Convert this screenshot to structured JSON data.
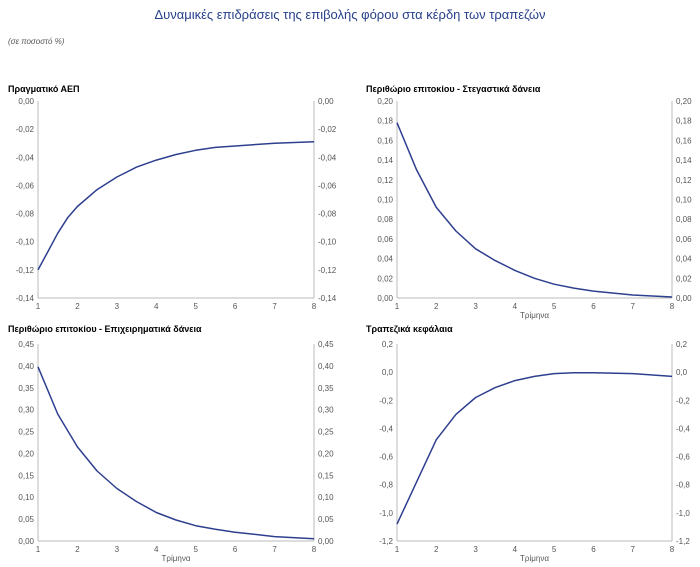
{
  "page": {
    "title": "Δυναμικές επιδράσεις της επιβολής φόρου στα κέρδη των τραπεζών",
    "unit_note": "(σε ποσοστό %)"
  },
  "chart_data": [
    {
      "type": "line",
      "title": "Πραγματικό ΑΕΠ",
      "xlabel": "",
      "x": [
        1,
        1.25,
        1.5,
        1.75,
        2,
        2.5,
        3,
        3.5,
        4,
        4.5,
        5,
        5.5,
        6,
        7,
        8
      ],
      "values": [
        -0.12,
        -0.107,
        -0.094,
        -0.083,
        -0.075,
        -0.063,
        -0.054,
        -0.047,
        -0.042,
        -0.038,
        -0.035,
        -0.033,
        -0.032,
        -0.03,
        -0.029
      ],
      "xticks": [
        "1",
        "2",
        "3",
        "4",
        "5",
        "6",
        "7",
        "8"
      ],
      "xlim": [
        1,
        8
      ],
      "ylim": [
        -0.14,
        0.0
      ],
      "yticks": [
        "0,00",
        "-0,02",
        "-0,04",
        "-0,06",
        "-0,08",
        "-0,10",
        "-0,12",
        "-0,14"
      ],
      "ytick_values": [
        0.0,
        -0.02,
        -0.04,
        -0.06,
        -0.08,
        -0.1,
        -0.12,
        -0.14
      ]
    },
    {
      "type": "line",
      "title": "Περιθώριο επιτοκίου - Στεγαστικά δάνεια",
      "xlabel": "Τρίμηνα",
      "x": [
        1,
        1.5,
        2,
        2.5,
        3,
        3.5,
        4,
        4.5,
        5,
        5.5,
        6,
        7,
        8
      ],
      "values": [
        0.178,
        0.13,
        0.092,
        0.068,
        0.05,
        0.038,
        0.028,
        0.02,
        0.014,
        0.01,
        0.007,
        0.003,
        0.001
      ],
      "xticks": [
        "1",
        "2",
        "3",
        "4",
        "5",
        "6",
        "7",
        "8"
      ],
      "xlim": [
        1,
        8
      ],
      "ylim": [
        0.0,
        0.2
      ],
      "yticks": [
        "0,20",
        "0,18",
        "0,16",
        "0,14",
        "0,12",
        "0,10",
        "0,08",
        "0,06",
        "0,04",
        "0,02",
        "0,00"
      ],
      "ytick_values": [
        0.2,
        0.18,
        0.16,
        0.14,
        0.12,
        0.1,
        0.08,
        0.06,
        0.04,
        0.02,
        0.0
      ]
    },
    {
      "type": "line",
      "title": "Περιθώριο επιτοκίου - Επιχειρηματικά δάνεια",
      "xlabel": "Τρίμηνα",
      "x": [
        1,
        1.5,
        2,
        2.5,
        3,
        3.5,
        4,
        4.5,
        5,
        5.5,
        6,
        7,
        8
      ],
      "values": [
        0.398,
        0.29,
        0.215,
        0.16,
        0.12,
        0.09,
        0.065,
        0.048,
        0.035,
        0.027,
        0.02,
        0.01,
        0.005
      ],
      "xticks": [
        "1",
        "2",
        "3",
        "4",
        "5",
        "6",
        "7",
        "8"
      ],
      "xlim": [
        1,
        8
      ],
      "ylim": [
        0.0,
        0.45
      ],
      "yticks": [
        "0,45",
        "0,40",
        "0,35",
        "0,30",
        "0,25",
        "0,20",
        "0,15",
        "0,10",
        "0,05",
        "0,00"
      ],
      "ytick_values": [
        0.45,
        0.4,
        0.35,
        0.3,
        0.25,
        0.2,
        0.15,
        0.1,
        0.05,
        0.0
      ]
    },
    {
      "type": "line",
      "title": "Τραπεζικά κεφάλαια",
      "xlabel": "Τρίμηνα",
      "x": [
        1,
        1.5,
        2,
        2.5,
        3,
        3.5,
        4,
        4.5,
        5,
        5.5,
        6,
        7,
        8
      ],
      "values": [
        -1.08,
        -0.78,
        -0.48,
        -0.3,
        -0.18,
        -0.11,
        -0.06,
        -0.03,
        -0.01,
        -0.005,
        -0.005,
        -0.01,
        -0.03
      ],
      "xticks": [
        "1",
        "2",
        "3",
        "4",
        "5",
        "6",
        "7",
        "8"
      ],
      "xlim": [
        1,
        8
      ],
      "ylim": [
        -1.2,
        0.2
      ],
      "yticks": [
        "0,2",
        "0,0",
        "-0,2",
        "-0,4",
        "-0,6",
        "-0,8",
        "-1,0",
        "-1,2"
      ],
      "ytick_values": [
        0.2,
        0.0,
        -0.2,
        -0.4,
        -0.6,
        -0.8,
        -1.0,
        -1.2
      ]
    }
  ]
}
